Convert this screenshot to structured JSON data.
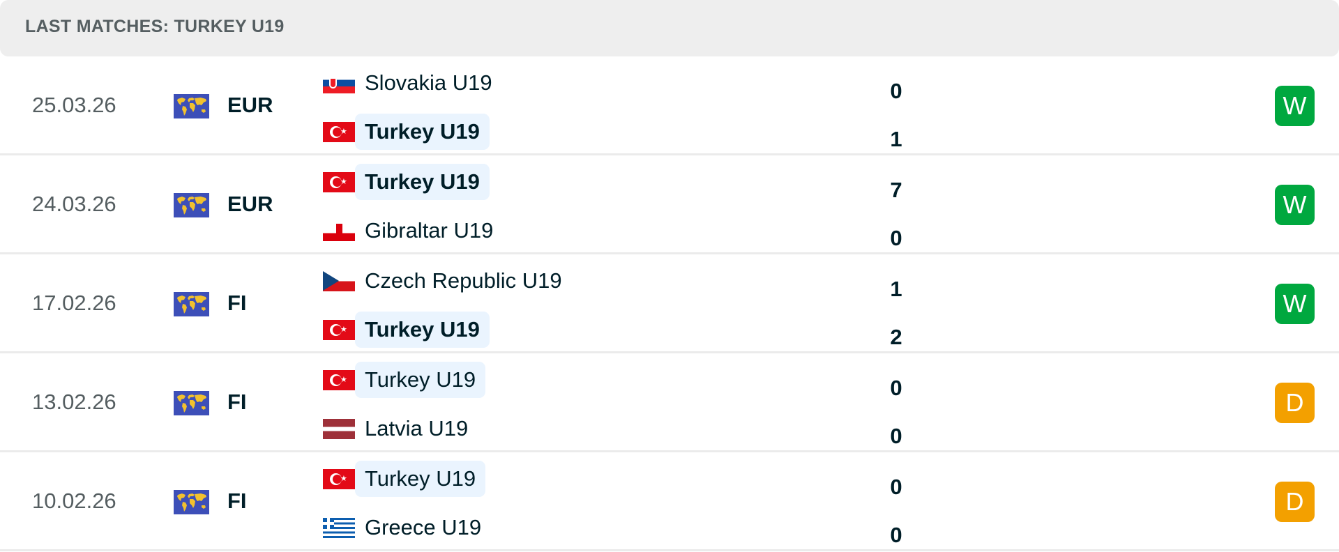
{
  "header": {
    "title": "LAST MATCHES: TURKEY U19"
  },
  "colors": {
    "win": "#00a83f",
    "draw": "#f3a000",
    "highlight": "#eaf4fe"
  },
  "matches": [
    {
      "date": "25.03.26",
      "league": "EUR",
      "league_icon": "world-icon",
      "home": {
        "name": "Slovakia U19",
        "flag": "slovakia",
        "score": "0"
      },
      "away": {
        "name": "Turkey U19",
        "flag": "turkey",
        "score": "1"
      },
      "result": "W"
    },
    {
      "date": "24.03.26",
      "league": "EUR",
      "league_icon": "world-icon",
      "home": {
        "name": "Turkey U19",
        "flag": "turkey",
        "score": "7"
      },
      "away": {
        "name": "Gibraltar U19",
        "flag": "gibraltar",
        "score": "0"
      },
      "result": "W"
    },
    {
      "date": "17.02.26",
      "league": "FI",
      "league_icon": "world-icon",
      "home": {
        "name": "Czech Republic U19",
        "flag": "czech-republic",
        "score": "1"
      },
      "away": {
        "name": "Turkey U19",
        "flag": "turkey",
        "score": "2"
      },
      "result": "W"
    },
    {
      "date": "13.02.26",
      "league": "FI",
      "league_icon": "world-icon",
      "home": {
        "name": "Turkey U19",
        "flag": "turkey",
        "score": "0"
      },
      "away": {
        "name": "Latvia U19",
        "flag": "latvia",
        "score": "0"
      },
      "result": "D"
    },
    {
      "date": "10.02.26",
      "league": "FI",
      "league_icon": "world-icon",
      "home": {
        "name": "Turkey U19",
        "flag": "turkey",
        "score": "0"
      },
      "away": {
        "name": "Greece U19",
        "flag": "greece",
        "score": "0"
      },
      "result": "D"
    }
  ]
}
